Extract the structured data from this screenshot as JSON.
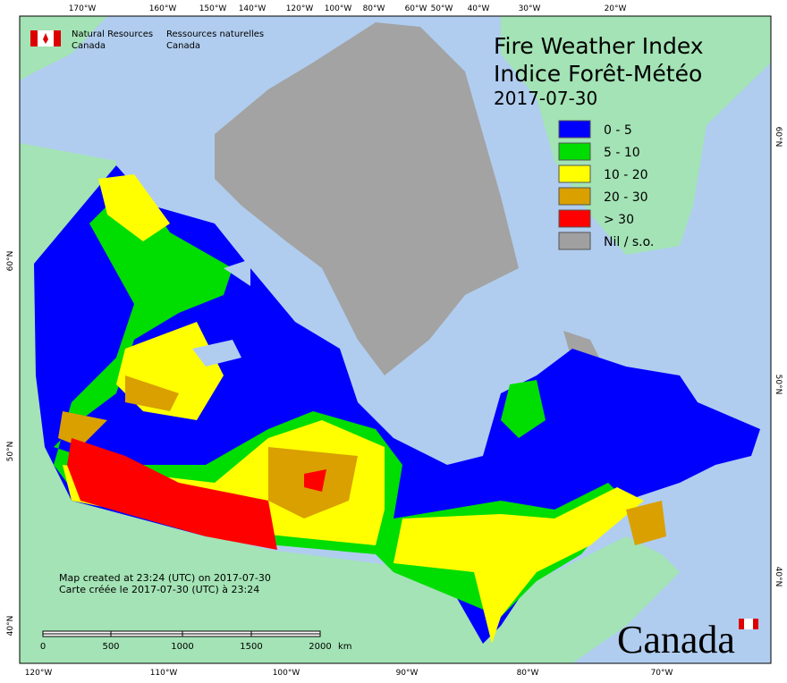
{
  "agency": {
    "en": [
      "Natural Resources",
      "Canada"
    ],
    "fr": [
      "Ressources naturelles",
      "Canada"
    ]
  },
  "title": [
    "Fire Weather Index",
    "Indice Forêt-Météo"
  ],
  "date": "2017-07-30",
  "legend": [
    {
      "label": "0 - 5",
      "color": "#0000ff"
    },
    {
      "label": "5 - 10",
      "color": "#00dd00"
    },
    {
      "label": "10 - 20",
      "color": "#ffff00"
    },
    {
      "label": "20 - 30",
      "color": "#d9a000"
    },
    {
      "label": "> 30",
      "color": "#ff0000"
    },
    {
      "label": "Nil / s.o.",
      "color": "#a0a0a0"
    }
  ],
  "notes": [
    "Map created at 23:24 (UTC) on 2017-07-30",
    "Carte créée le 2017-07-30 (UTC) à 23:24"
  ],
  "scale": {
    "ticks": [
      "0",
      "500",
      "1000",
      "1500",
      "2000"
    ],
    "unit": "km"
  },
  "graticule": {
    "top": [
      "170°W",
      "160°W",
      "150°W",
      "140°W",
      "120°W",
      "100°W",
      "80°W",
      "60°W",
      "50°W",
      "40°W",
      "30°W",
      "20°W"
    ],
    "bottom": [
      "120°W",
      "110°W",
      "100°W",
      "90°W",
      "80°W",
      "70°W"
    ],
    "left": [
      "60°N",
      "50°N",
      "40°N"
    ],
    "right": [
      "60°N",
      "50°N",
      "40°N"
    ]
  },
  "wordmark": "Canada"
}
